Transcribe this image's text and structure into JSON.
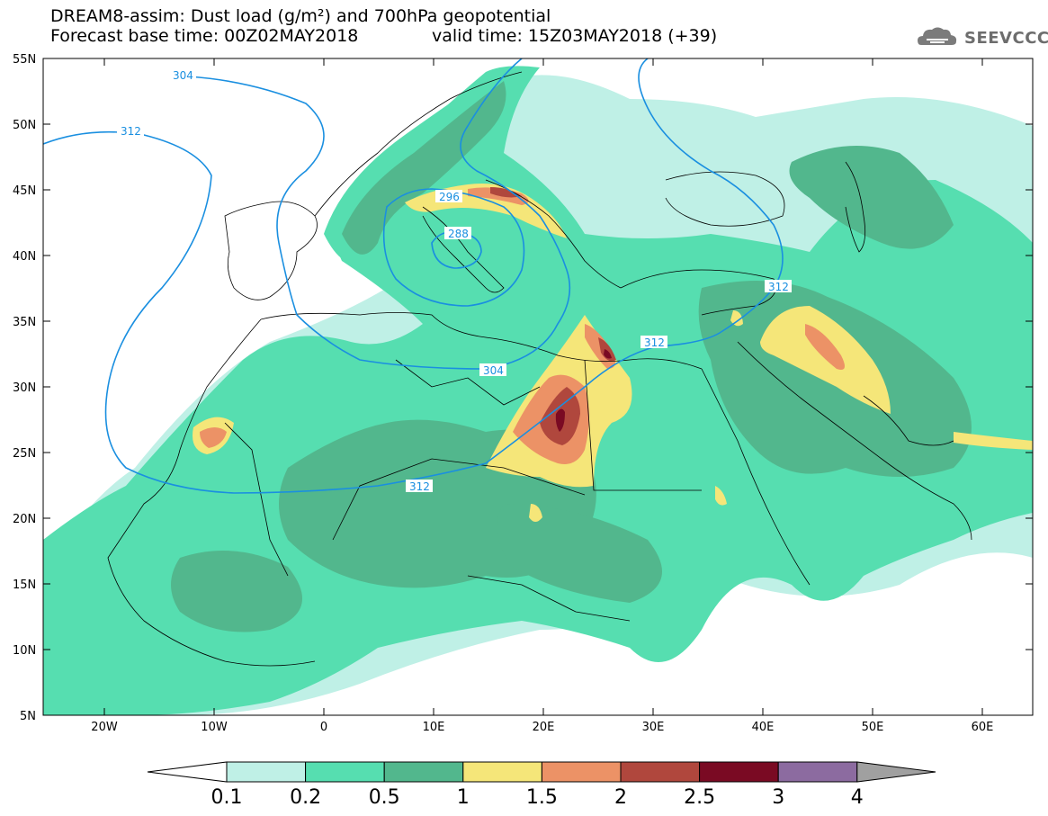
{
  "title": {
    "line1": "DREAM8-assim: Dust load (g/m²) and 700hPa geopotential",
    "line2": "Forecast base time: 00Z02MAY2018",
    "line2_valid": "valid time: 15Z03MAY2018 (+39)"
  },
  "logo": {
    "text": "SEEVCCC",
    "icon": "cloud-logo-icon"
  },
  "axes": {
    "lat_labels": [
      "55N",
      "50N",
      "45N",
      "40N",
      "35N",
      "30N",
      "25N",
      "20N",
      "15N",
      "10N",
      "5N"
    ],
    "lon_labels": [
      "20W",
      "10W",
      "0",
      "10E",
      "20E",
      "30E",
      "40E",
      "50E",
      "60E"
    ]
  },
  "contour_labels": [
    "304",
    "312",
    "296",
    "288",
    "312",
    "312",
    "304",
    "312"
  ],
  "colorbar": {
    "labels": [
      "0.1",
      "0.2",
      "0.5",
      "1",
      "1.5",
      "2",
      "2.5",
      "3",
      "4"
    ],
    "colors": [
      "#bff0e6",
      "#56deb0",
      "#52b78d",
      "#f5e679",
      "#ec9266",
      "#b0473d",
      "#7a0a23",
      "#8c6ba0"
    ],
    "under_color": "#ffffff",
    "over_color": "#a0a0a0"
  },
  "colors": {
    "contour_line": "#1a8fe0",
    "border_line": "#000000"
  }
}
